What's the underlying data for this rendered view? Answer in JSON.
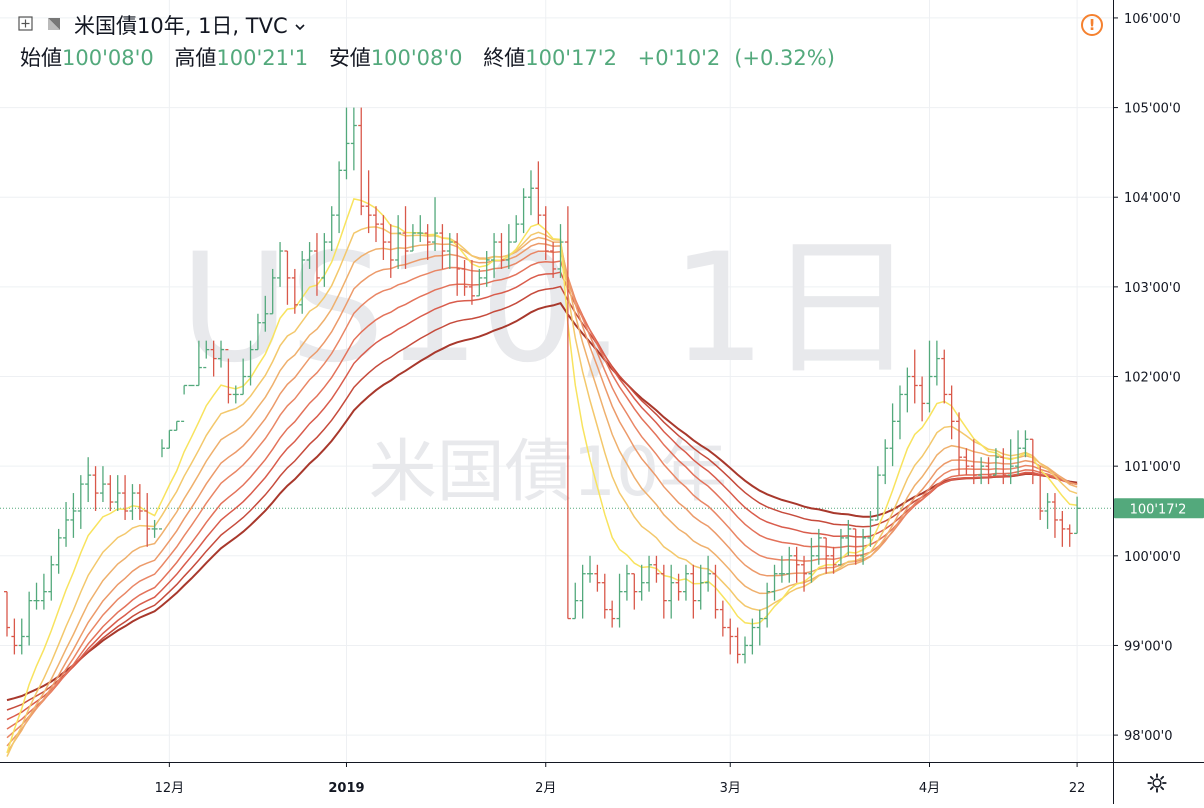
{
  "header": {
    "title": "米国債10年, 1日, TVC",
    "ohlc": [
      {
        "label": "始値",
        "value": "100'08'0"
      },
      {
        "label": "高値",
        "value": "100'21'1"
      },
      {
        "label": "安値",
        "value": "100'08'0"
      },
      {
        "label": "終値",
        "value": "100'17'2"
      }
    ],
    "change": "+0'10'2",
    "change_pct": "(+0.32%)"
  },
  "watermark": {
    "symbol": "US10, 1日",
    "name": "米国債10年"
  },
  "colors": {
    "up": "#53a97c",
    "down": "#d9584a",
    "alert": "#f5812f",
    "price_tag": "#53a97c",
    "ribbon": [
      "#f8e35e",
      "#f3c86c",
      "#efb06d",
      "#ec9a6a",
      "#e98665",
      "#e3725a",
      "#d95c4c",
      "#c64b3c",
      "#a8382c"
    ]
  },
  "icons": {
    "alert": "alert-icon",
    "settings": "gear-icon",
    "symbol_menu": "chevron-down-icon",
    "expand": "expand-icon"
  },
  "chart_data": {
    "type": "ohlc-bar",
    "title": "米国債10年, 1日, TVC",
    "ylim": [
      97.7,
      106.2
    ],
    "ylabels": [
      "98'00'0",
      "99'00'0",
      "100'00'0",
      "101'00'0",
      "102'00'0",
      "103'00'0",
      "104'00'0",
      "105'00'0",
      "106'00'0"
    ],
    "yticks": [
      98,
      99,
      100,
      101,
      102,
      103,
      104,
      105,
      106
    ],
    "last_price": 100.53,
    "last_price_label": "100'17'2",
    "xlabels": [
      {
        "i": 22,
        "text": "12月",
        "bold": false
      },
      {
        "i": 46,
        "text": "2019",
        "bold": true
      },
      {
        "i": 73,
        "text": "2月",
        "bold": false
      },
      {
        "i": 98,
        "text": "3月",
        "bold": false
      },
      {
        "i": 125,
        "text": "4月",
        "bold": false
      },
      {
        "i": 145,
        "text": "22",
        "bold": false
      }
    ],
    "bars": [
      [
        99.6,
        99.2,
        99.6,
        99.1
      ],
      [
        99.1,
        99.0,
        99.3,
        98.9
      ],
      [
        99.0,
        99.1,
        99.3,
        98.9
      ],
      [
        99.1,
        99.5,
        99.6,
        99.0
      ],
      [
        99.5,
        99.5,
        99.7,
        99.4
      ],
      [
        99.5,
        99.6,
        99.8,
        99.4
      ],
      [
        99.6,
        99.9,
        100.0,
        99.5
      ],
      [
        99.9,
        100.2,
        100.3,
        99.8
      ],
      [
        100.2,
        100.4,
        100.6,
        100.1
      ],
      [
        100.4,
        100.5,
        100.7,
        100.2
      ],
      [
        100.5,
        100.8,
        100.9,
        100.3
      ],
      [
        100.8,
        100.9,
        101.1,
        100.6
      ],
      [
        100.9,
        100.7,
        101.0,
        100.5
      ],
      [
        100.7,
        100.8,
        101.0,
        100.6
      ],
      [
        100.8,
        100.6,
        100.9,
        100.5
      ],
      [
        100.6,
        100.7,
        100.9,
        100.5
      ],
      [
        100.7,
        100.5,
        100.9,
        100.4
      ],
      [
        100.5,
        100.7,
        100.8,
        100.4
      ],
      [
        100.7,
        100.5,
        100.8,
        100.4
      ],
      [
        100.5,
        100.3,
        100.7,
        100.1
      ],
      [
        100.3,
        100.3,
        100.4,
        100.2
      ],
      [
        100.3,
        101.2,
        101.3,
        101.1
      ],
      [
        101.2,
        101.4,
        101.4,
        101.2
      ],
      [
        101.4,
        101.5,
        101.5,
        101.4
      ],
      [
        101.5,
        101.9,
        101.9,
        101.8
      ],
      [
        101.9,
        101.9,
        101.9,
        101.9
      ],
      [
        101.9,
        102.1,
        102.4,
        101.9
      ],
      [
        102.1,
        102.3,
        102.4,
        102.2
      ],
      [
        102.3,
        102.2,
        102.4,
        102.0
      ],
      [
        102.2,
        102.3,
        102.4,
        102.1
      ],
      [
        102.3,
        101.8,
        102.2,
        101.7
      ],
      [
        101.8,
        101.8,
        101.9,
        101.7
      ],
      [
        101.8,
        102.0,
        102.2,
        101.8
      ],
      [
        102.0,
        102.3,
        102.4,
        101.9
      ],
      [
        102.3,
        102.6,
        102.7,
        102.3
      ],
      [
        102.6,
        102.7,
        102.9,
        102.5
      ],
      [
        102.7,
        103.1,
        103.2,
        102.7
      ],
      [
        103.1,
        103.4,
        103.5,
        103.0
      ],
      [
        103.4,
        103.1,
        103.4,
        102.8
      ],
      [
        103.1,
        102.8,
        103.2,
        102.7
      ],
      [
        102.8,
        103.3,
        103.4,
        102.7
      ],
      [
        103.3,
        103.4,
        103.5,
        103.2
      ],
      [
        103.4,
        103.1,
        103.6,
        102.9
      ],
      [
        103.1,
        103.5,
        103.6,
        103.0
      ],
      [
        103.5,
        103.8,
        103.9,
        103.4
      ],
      [
        103.8,
        104.3,
        104.4,
        103.6
      ],
      [
        104.3,
        104.6,
        105.0,
        104.2
      ],
      [
        104.6,
        104.8,
        105.0,
        104.3
      ],
      [
        104.8,
        103.9,
        105.0,
        103.8
      ],
      [
        103.9,
        103.8,
        104.3,
        103.6
      ],
      [
        103.8,
        103.7,
        103.9,
        103.5
      ],
      [
        103.7,
        103.5,
        103.8,
        103.3
      ],
      [
        103.5,
        103.3,
        103.7,
        103.1
      ],
      [
        103.3,
        103.6,
        103.8,
        103.2
      ],
      [
        103.6,
        103.4,
        103.9,
        103.2
      ],
      [
        103.4,
        103.6,
        103.7,
        103.4
      ],
      [
        103.6,
        103.6,
        103.8,
        103.5
      ],
      [
        103.6,
        103.5,
        103.7,
        103.3
      ],
      [
        103.5,
        103.6,
        104.0,
        103.4
      ],
      [
        103.6,
        103.4,
        103.7,
        103.2
      ],
      [
        103.4,
        103.5,
        103.6,
        103.2
      ],
      [
        103.5,
        103.2,
        103.6,
        102.9
      ],
      [
        103.2,
        103.0,
        103.3,
        102.9
      ],
      [
        103.0,
        102.9,
        103.3,
        102.8
      ],
      [
        102.9,
        103.1,
        103.2,
        102.9
      ],
      [
        103.1,
        103.3,
        103.4,
        103.0
      ],
      [
        103.3,
        103.5,
        103.6,
        103.1
      ],
      [
        103.5,
        103.3,
        103.6,
        103.2
      ],
      [
        103.3,
        103.5,
        103.7,
        103.2
      ],
      [
        103.5,
        103.7,
        103.8,
        103.5
      ],
      [
        103.7,
        104.0,
        104.1,
        103.6
      ],
      [
        104.0,
        104.1,
        104.3,
        103.8
      ],
      [
        104.1,
        103.8,
        104.4,
        103.7
      ],
      [
        103.8,
        103.4,
        103.9,
        103.3
      ],
      [
        103.4,
        103.2,
        103.5,
        103.1
      ],
      [
        103.2,
        103.5,
        103.7,
        103.1
      ],
      [
        103.5,
        99.3,
        103.9,
        99.3
      ],
      [
        99.3,
        99.5,
        99.7,
        99.3
      ],
      [
        99.5,
        99.8,
        99.9,
        99.3
      ],
      [
        99.8,
        99.8,
        100.0,
        99.7
      ],
      [
        99.8,
        99.7,
        99.9,
        99.6
      ],
      [
        99.7,
        99.4,
        99.8,
        99.3
      ],
      [
        99.4,
        99.3,
        99.5,
        99.2
      ],
      [
        99.3,
        99.6,
        99.8,
        99.2
      ],
      [
        99.6,
        99.8,
        99.9,
        99.5
      ],
      [
        99.8,
        99.6,
        99.8,
        99.4
      ],
      [
        99.6,
        99.7,
        99.9,
        99.5
      ],
      [
        99.7,
        99.9,
        100.0,
        99.6
      ],
      [
        99.9,
        99.8,
        100.0,
        99.7
      ],
      [
        99.8,
        99.5,
        99.9,
        99.3
      ],
      [
        99.5,
        99.7,
        99.9,
        99.3
      ],
      [
        99.7,
        99.6,
        99.8,
        99.5
      ],
      [
        99.6,
        99.8,
        99.9,
        99.5
      ],
      [
        99.8,
        99.5,
        99.9,
        99.3
      ],
      [
        99.5,
        99.7,
        99.9,
        99.4
      ],
      [
        99.7,
        99.8,
        100.0,
        99.6
      ],
      [
        99.8,
        99.4,
        99.9,
        99.3
      ],
      [
        99.4,
        99.2,
        99.5,
        99.1
      ],
      [
        99.2,
        99.1,
        99.3,
        98.9
      ],
      [
        99.1,
        98.9,
        99.2,
        98.8
      ],
      [
        98.9,
        99.0,
        99.1,
        98.8
      ],
      [
        99.0,
        99.2,
        99.3,
        98.9
      ],
      [
        99.2,
        99.3,
        99.4,
        99.0
      ],
      [
        99.3,
        99.6,
        99.7,
        99.2
      ],
      [
        99.6,
        99.8,
        99.9,
        99.5
      ],
      [
        99.8,
        99.8,
        100.0,
        99.7
      ],
      [
        99.8,
        100.0,
        100.1,
        99.7
      ],
      [
        100.0,
        99.9,
        100.1,
        99.7
      ],
      [
        99.9,
        99.8,
        100.0,
        99.6
      ],
      [
        99.8,
        100.0,
        100.2,
        99.7
      ],
      [
        100.0,
        100.2,
        100.3,
        99.9
      ],
      [
        100.2,
        100.0,
        100.2,
        99.8
      ],
      [
        100.0,
        99.9,
        100.1,
        99.8
      ],
      [
        99.9,
        100.2,
        100.3,
        99.9
      ],
      [
        100.2,
        100.3,
        100.4,
        100.0
      ],
      [
        100.3,
        100.0,
        100.3,
        99.9
      ],
      [
        100.0,
        100.2,
        100.3,
        99.9
      ],
      [
        100.2,
        100.4,
        100.5,
        100.1
      ],
      [
        100.4,
        100.9,
        101.0,
        100.4
      ],
      [
        100.9,
        101.2,
        101.3,
        100.8
      ],
      [
        101.2,
        101.5,
        101.7,
        101.0
      ],
      [
        101.5,
        101.8,
        101.9,
        101.3
      ],
      [
        101.8,
        102.0,
        102.1,
        101.6
      ],
      [
        102.0,
        101.9,
        102.3,
        101.7
      ],
      [
        101.9,
        101.7,
        102.0,
        101.5
      ],
      [
        101.7,
        102.0,
        102.4,
        101.6
      ],
      [
        102.0,
        102.2,
        102.4,
        101.9
      ],
      [
        102.2,
        101.8,
        102.3,
        101.7
      ],
      [
        101.8,
        101.5,
        101.9,
        101.3
      ],
      [
        101.5,
        101.1,
        101.6,
        100.9
      ],
      [
        101.1,
        101.0,
        101.2,
        100.9
      ],
      [
        101.0,
        100.9,
        101.3,
        100.8
      ],
      [
        100.9,
        101.0,
        101.1,
        100.8
      ],
      [
        101.0,
        100.9,
        101.1,
        100.8
      ],
      [
        100.9,
        101.1,
        101.2,
        100.9
      ],
      [
        101.1,
        100.9,
        101.2,
        100.8
      ],
      [
        100.9,
        101.0,
        101.3,
        100.8
      ],
      [
        101.0,
        101.2,
        101.4,
        100.9
      ],
      [
        101.2,
        101.3,
        101.4,
        101.1
      ],
      [
        101.3,
        100.9,
        101.3,
        100.8
      ],
      [
        100.9,
        100.5,
        101.0,
        100.4
      ],
      [
        100.5,
        100.6,
        100.7,
        100.3
      ],
      [
        100.6,
        100.4,
        100.7,
        100.2
      ],
      [
        100.4,
        100.3,
        100.5,
        100.1
      ],
      [
        100.3,
        100.25,
        100.35,
        100.1
      ],
      [
        100.25,
        100.53,
        100.66,
        100.25
      ]
    ],
    "ribbon_lengths": [
      8,
      13,
      18,
      23,
      28,
      34,
      40,
      47,
      55
    ]
  }
}
